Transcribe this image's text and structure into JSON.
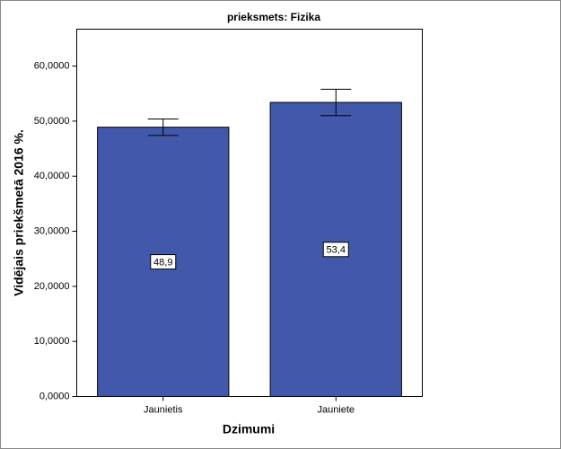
{
  "chart_data": {
    "type": "bar",
    "title": "prieksmets: Fizika",
    "x_label": "Dzimumi",
    "y_label": "Vidējais priekšmetā 2016 %.",
    "categories": [
      "Jaunietis",
      "Jauniete"
    ],
    "values": [
      48.9,
      53.4
    ],
    "value_labels": [
      "48,9",
      "53,4"
    ],
    "errors": [
      1.5,
      2.4
    ],
    "color": "#4259ab",
    "ylim": [
      0,
      66.7
    ],
    "yticks": [
      {
        "value": 0,
        "label": "0,0000"
      },
      {
        "value": 10,
        "label": "10,0000"
      },
      {
        "value": 20,
        "label": "20,0000"
      },
      {
        "value": 30,
        "label": "30,0000"
      },
      {
        "value": 40,
        "label": "40,0000"
      },
      {
        "value": 50,
        "label": "50,0000"
      },
      {
        "value": 60,
        "label": "60,0000"
      }
    ],
    "grid": false
  }
}
